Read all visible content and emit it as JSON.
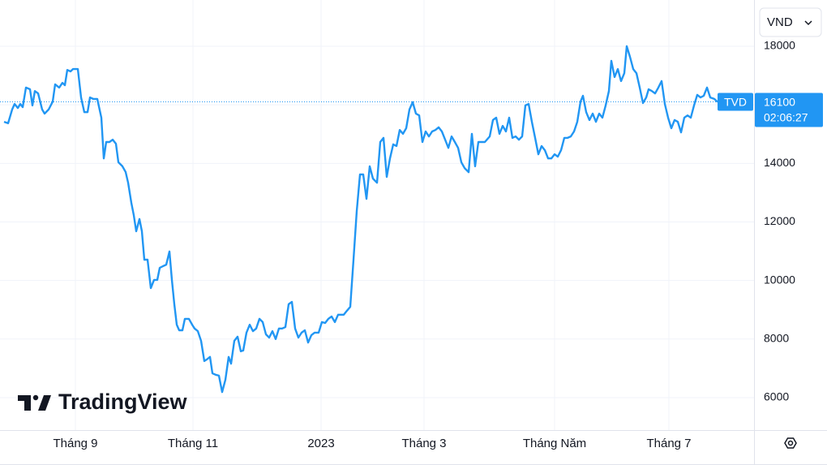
{
  "chart_data": {
    "type": "line",
    "currency": "VND",
    "logo": "TradingView",
    "x": [
      5,
      10,
      15,
      18,
      22,
      25,
      28,
      32,
      37,
      40,
      43,
      47,
      52,
      55,
      60,
      65,
      68,
      73,
      77,
      80,
      83,
      87,
      90,
      96,
      100,
      104,
      108,
      111,
      115,
      120,
      125,
      128,
      131,
      135,
      139,
      143,
      146,
      151,
      155,
      158,
      162,
      165,
      168,
      172,
      175,
      178,
      182,
      186,
      190,
      194,
      197,
      201,
      205,
      209,
      212,
      215,
      218,
      221,
      225,
      228,
      233,
      237,
      240,
      244,
      248,
      252,
      255,
      259,
      262,
      266,
      270,
      274,
      278,
      282,
      285,
      289,
      293,
      297,
      300,
      304,
      308,
      312,
      316,
      320,
      324,
      328,
      332,
      336,
      340,
      344,
      348,
      352,
      356,
      360,
      364,
      368,
      372,
      376,
      380,
      384,
      388,
      393,
      397,
      401,
      405,
      409,
      413,
      417,
      424,
      428,
      432,
      436,
      440,
      444,
      448,
      452,
      456,
      460,
      465,
      469,
      473,
      477,
      481,
      485,
      489,
      493,
      497,
      501,
      505,
      509,
      513,
      517,
      521,
      525,
      529,
      533,
      537,
      541,
      545,
      549,
      553,
      557,
      561,
      565,
      569,
      573,
      578,
      582,
      586,
      590,
      598,
      604,
      608,
      612,
      616,
      620,
      624,
      628,
      632,
      636,
      640,
      644,
      648,
      652,
      656,
      660,
      664,
      668,
      672,
      676,
      680,
      684,
      688,
      692,
      696,
      700,
      704,
      708,
      712,
      716,
      719,
      723,
      727,
      731,
      735,
      739,
      743,
      747,
      751,
      754,
      758,
      762,
      766,
      770,
      773,
      777,
      781,
      785,
      789,
      793,
      797,
      800,
      804,
      808,
      812,
      816,
      820,
      824,
      828,
      832,
      836,
      840,
      844,
      848,
      852,
      856,
      860,
      864,
      868,
      872,
      876,
      881,
      885
    ],
    "series": [
      {
        "name": "TVD",
        "color": "#2196f3",
        "values": [
          15420,
          15370,
          15840,
          16030,
          15890,
          16030,
          15920,
          16590,
          16530,
          15980,
          16470,
          16390,
          15840,
          15700,
          15840,
          16110,
          16700,
          16590,
          16750,
          16670,
          17190,
          17140,
          17220,
          17220,
          16250,
          15750,
          15750,
          16250,
          16200,
          16200,
          15560,
          14170,
          14730,
          14730,
          14810,
          14670,
          14040,
          13900,
          13700,
          13340,
          12650,
          12230,
          11680,
          12100,
          11680,
          10710,
          10710,
          9740,
          10020,
          10020,
          10430,
          10490,
          10540,
          10990,
          10020,
          9190,
          8490,
          8300,
          8300,
          8690,
          8690,
          8490,
          8360,
          8270,
          7940,
          7250,
          7300,
          7390,
          6830,
          6780,
          6750,
          6190,
          6610,
          7390,
          7160,
          7940,
          8080,
          7580,
          7610,
          8220,
          8490,
          8270,
          8360,
          8690,
          8580,
          8160,
          8050,
          8270,
          8000,
          8360,
          8360,
          8410,
          9190,
          9270,
          8360,
          8050,
          8220,
          8300,
          7880,
          8130,
          8220,
          8220,
          8580,
          8550,
          8690,
          8770,
          8580,
          8830,
          8830,
          8970,
          9100,
          10710,
          12370,
          13620,
          13620,
          12790,
          13900,
          13480,
          13340,
          14730,
          14870,
          13540,
          14170,
          14650,
          14590,
          15140,
          15010,
          15200,
          15840,
          16090,
          15700,
          15640,
          14730,
          15090,
          14920,
          15090,
          15140,
          15230,
          15090,
          14810,
          14530,
          14920,
          14730,
          14530,
          14040,
          13840,
          13700,
          15010,
          13900,
          14730,
          14730,
          14920,
          15480,
          15560,
          15010,
          15280,
          15090,
          15560,
          14870,
          14920,
          14810,
          14920,
          15980,
          16030,
          15420,
          14870,
          14310,
          14590,
          14450,
          14170,
          14170,
          14310,
          14230,
          14450,
          14870,
          14870,
          14920,
          15090,
          15420,
          16110,
          16310,
          15750,
          15480,
          15700,
          15420,
          15700,
          15560,
          15980,
          16470,
          17500,
          16950,
          17220,
          16810,
          17080,
          18000,
          17640,
          17220,
          17080,
          16590,
          16060,
          16250,
          16530,
          16470,
          16390,
          16590,
          16810,
          16030,
          15560,
          15200,
          15480,
          15420,
          15060,
          15560,
          15640,
          15560,
          15980,
          16340,
          16250,
          16310,
          16590,
          16250,
          16200,
          16100
        ]
      }
    ],
    "last_price": 16100,
    "last_time": "02:06:27",
    "xlim": [
      0,
      930
    ],
    "xticks": [
      {
        "value": 93,
        "label": "Tháng 9"
      },
      {
        "value": 238,
        "label": "Tháng 11"
      },
      {
        "value": 396,
        "label": "2023"
      },
      {
        "value": 523,
        "label": "Tháng 3"
      },
      {
        "value": 684,
        "label": "Tháng Năm"
      },
      {
        "value": 825,
        "label": "Tháng 7"
      }
    ],
    "ylim": [
      4890,
      19580
    ],
    "yticks": [
      6000,
      8000,
      10000,
      12000,
      14000,
      16000,
      18000
    ],
    "grid": true
  }
}
